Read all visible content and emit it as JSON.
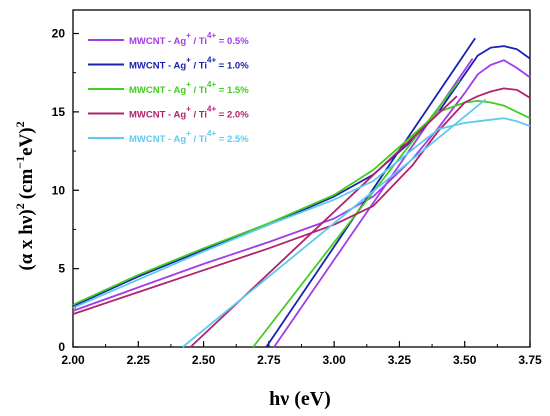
{
  "chart_data": {
    "type": "line",
    "xlabel": "hν (eV)",
    "ylabel_main": "(α x hν)",
    "ylabel_sup": "2",
    "ylabel_unit": "(cm",
    "ylabel_unit_sup": "−1",
    "ylabel_unit_tail": "eV)",
    "ylabel_tail_sup": "2",
    "xlim": [
      2.0,
      3.75
    ],
    "ylim": [
      0,
      21.5
    ],
    "x_ticks": [
      "2.00",
      "2.25",
      "2.50",
      "2.75",
      "3.00",
      "3.25",
      "3.50",
      "3.75"
    ],
    "y_ticks": [
      "0",
      "5",
      "10",
      "15",
      "20"
    ],
    "legend_position": "top-left",
    "grid": false,
    "series": [
      {
        "name": "MWCNT - Ag+ / Ti4+ = 0.5%",
        "label_base": "MWCNT - Ag",
        "label_sup1": "+",
        "label_mid": " / Ti",
        "label_sup2": "4+",
        "label_tail": " = 0.5%",
        "color": "#a23ce8",
        "x": [
          2.0,
          2.25,
          2.5,
          2.75,
          3.0,
          3.15,
          3.3,
          3.4,
          3.5,
          3.55,
          3.6,
          3.65,
          3.7,
          3.75
        ],
        "y": [
          2.3,
          3.8,
          5.3,
          6.7,
          8.2,
          9.6,
          12.0,
          14.0,
          16.2,
          17.4,
          18.0,
          18.3,
          17.8,
          17.2
        ],
        "tangent": [
          [
            2.77,
            0
          ],
          [
            3.53,
            18.4
          ]
        ]
      },
      {
        "name": "MWCNT - Ag+ / Ti4+ = 1.0%",
        "label_base": "MWCNT - Ag",
        "label_sup1": "+",
        "label_mid": " / Ti",
        "label_sup2": "4+",
        "label_tail": " = 1.0%",
        "color": "#1a22b0",
        "x": [
          2.0,
          2.25,
          2.5,
          2.75,
          3.0,
          3.15,
          3.3,
          3.4,
          3.5,
          3.55,
          3.6,
          3.65,
          3.7,
          3.75
        ],
        "y": [
          2.6,
          4.5,
          6.2,
          7.8,
          9.6,
          11.0,
          13.2,
          15.0,
          17.4,
          18.6,
          19.1,
          19.2,
          19.0,
          18.4
        ],
        "tangent": [
          [
            2.74,
            0
          ],
          [
            3.54,
            19.7
          ]
        ]
      },
      {
        "name": "MWCNT - Ag+ / Ti4+ = 1.5%",
        "label_base": "MWCNT - Ag",
        "label_sup1": "+",
        "label_mid": " / Ti",
        "label_sup2": "4+",
        "label_tail": " = 1.5%",
        "color": "#44cc22",
        "x": [
          2.0,
          2.25,
          2.5,
          2.75,
          3.0,
          3.15,
          3.3,
          3.4,
          3.5,
          3.55,
          3.6,
          3.65,
          3.7,
          3.75
        ],
        "y": [
          2.7,
          4.6,
          6.3,
          7.9,
          9.7,
          11.3,
          13.5,
          15.0,
          15.6,
          15.7,
          15.6,
          15.4,
          15.0,
          14.6
        ],
        "tangent": [
          [
            2.69,
            0
          ],
          [
            3.48,
            17.0
          ]
        ]
      },
      {
        "name": "MWCNT - Ag+ / Ti4+ = 2.0%",
        "label_base": "MWCNT - Ag",
        "label_sup1": "+",
        "label_mid": " / Ti",
        "label_sup2": "4+",
        "label_tail": " = 2.0%",
        "color": "#b0236e",
        "x": [
          2.0,
          2.25,
          2.5,
          2.75,
          3.0,
          3.15,
          3.3,
          3.4,
          3.5,
          3.55,
          3.6,
          3.65,
          3.7,
          3.75
        ],
        "y": [
          2.1,
          3.5,
          4.9,
          6.3,
          7.8,
          9.0,
          11.6,
          13.8,
          15.6,
          16.0,
          16.3,
          16.5,
          16.4,
          15.9
        ],
        "tangent": [
          [
            2.45,
            0
          ],
          [
            3.47,
            16.0
          ]
        ]
      },
      {
        "name": "MWCNT - Ag+ / Ti4+ = 2.5%",
        "label_base": "MWCNT - Ag",
        "label_sup1": "+",
        "label_mid": " / Ti",
        "label_sup2": "4+",
        "label_tail": " = 2.5%",
        "color": "#5ecbee",
        "x": [
          2.0,
          2.25,
          2.5,
          2.75,
          3.0,
          3.15,
          3.3,
          3.4,
          3.5,
          3.55,
          3.6,
          3.65,
          3.7,
          3.75
        ],
        "y": [
          2.5,
          4.3,
          6.1,
          7.8,
          9.4,
          10.6,
          12.6,
          13.9,
          14.3,
          14.4,
          14.5,
          14.6,
          14.4,
          14.1
        ],
        "tangent": [
          [
            2.42,
            0
          ],
          [
            3.58,
            15.8
          ]
        ]
      }
    ]
  }
}
